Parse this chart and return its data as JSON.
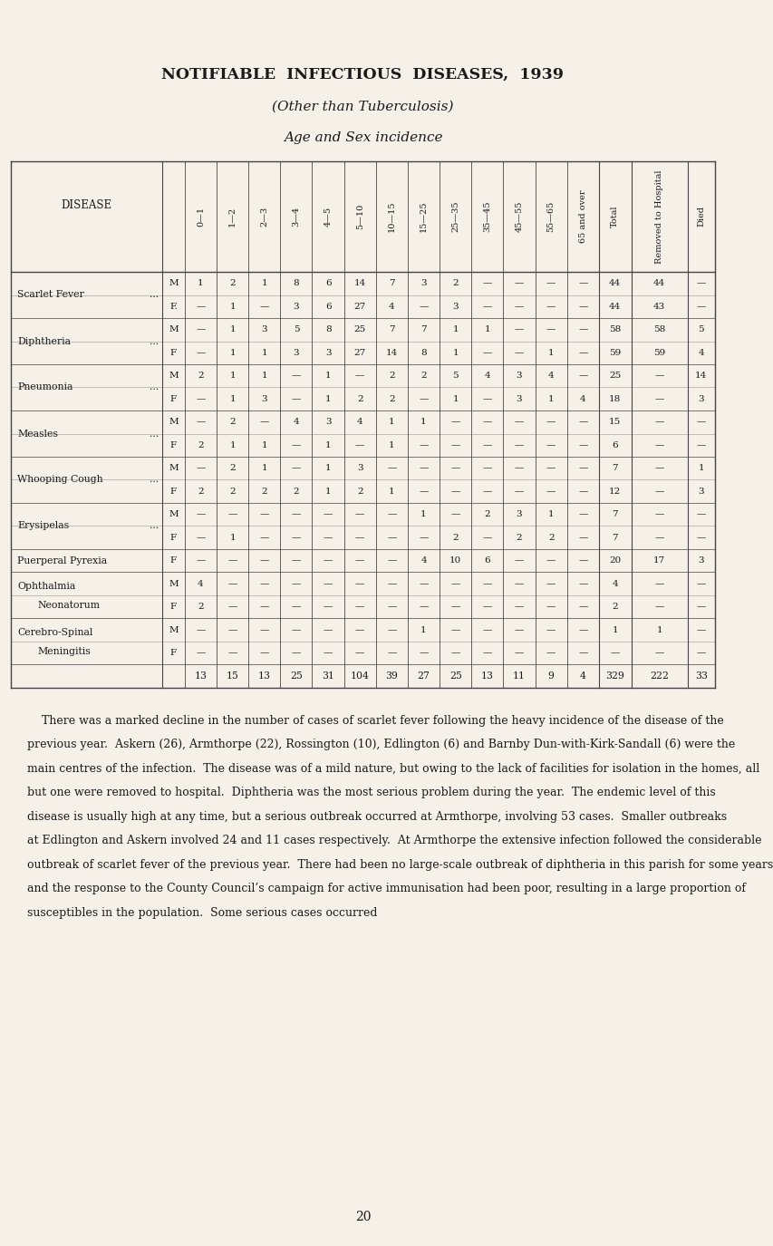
{
  "bg_color": "#f5f0e8",
  "title1": "NOTIFIABLE  INFECTIOUS  DISEASES,  1939",
  "title2": "(Other than Tuberculosis)",
  "title3": "Age and Sex incidence",
  "col_headers": [
    "0—1",
    "1—2",
    "2—3",
    "3—4",
    "4—5",
    "5—10",
    "10—15",
    "15—25",
    "25—35",
    "35—45",
    "45—55",
    "55—65",
    "65 and over",
    "Total",
    "Removed to Hospital",
    "Died"
  ],
  "diseases": [
    {
      "name": "Scarlet Fever",
      "dots": "...",
      "rows": [
        {
          "sex": "M",
          "vals": [
            "1",
            "2",
            "1",
            "8",
            "6",
            "14",
            "7",
            "3",
            "2",
            "—",
            "—",
            "—",
            "—",
            "44",
            "44",
            "—"
          ]
        },
        {
          "sex": "F.",
          "vals": [
            "—",
            "1",
            "—",
            "3",
            "6",
            "27",
            "4",
            "—",
            "3",
            "—",
            "—",
            "—",
            "—",
            "44",
            "43",
            "—"
          ]
        }
      ]
    },
    {
      "name": "Diphtheria",
      "dots": "...",
      "rows": [
        {
          "sex": "M",
          "vals": [
            "—",
            "1",
            "3",
            "5",
            "8",
            "25",
            "7",
            "7",
            "1",
            "1",
            "—",
            "—",
            "—",
            "58",
            "58",
            "5"
          ]
        },
        {
          "sex": "F",
          "vals": [
            "—",
            "1",
            "1",
            "3",
            "3",
            "27",
            "14",
            "8",
            "1",
            "—",
            "—",
            "1",
            "—",
            "59",
            "59",
            "4"
          ]
        }
      ]
    },
    {
      "name": "Pneumonia",
      "dots": "...",
      "rows": [
        {
          "sex": "M",
          "vals": [
            "2",
            "1",
            "1",
            "—",
            "1",
            "—",
            "2",
            "2",
            "5",
            "4",
            "3",
            "4",
            "—",
            "25",
            "—",
            "14"
          ]
        },
        {
          "sex": "F",
          "vals": [
            "—",
            "1",
            "3",
            "—",
            "1",
            "2",
            "2",
            "—",
            "1",
            "—",
            "3",
            "1",
            "4",
            "18",
            "—",
            "3"
          ]
        }
      ]
    },
    {
      "name": "Measles",
      "dots": "...",
      "rows": [
        {
          "sex": "M",
          "vals": [
            "—",
            "2",
            "—",
            "4",
            "3",
            "4",
            "1",
            "1",
            "—",
            "—",
            "—",
            "—",
            "—",
            "15",
            "—",
            "—"
          ]
        },
        {
          "sex": "F",
          "vals": [
            "2",
            "1",
            "1",
            "—",
            "1",
            "—",
            "1",
            "—",
            "—",
            "—",
            "—",
            "—",
            "—",
            "6",
            "—",
            "—"
          ]
        }
      ]
    },
    {
      "name": "Whooping Cough",
      "dots": "...",
      "rows": [
        {
          "sex": "M",
          "vals": [
            "—",
            "2",
            "1",
            "—",
            "1",
            "3",
            "—",
            "—",
            "—",
            "—",
            "—",
            "—",
            "—",
            "7",
            "—",
            "1"
          ]
        },
        {
          "sex": "F",
          "vals": [
            "2",
            "2",
            "2",
            "2",
            "1",
            "2",
            "1",
            "—",
            "—",
            "—",
            "—",
            "—",
            "—",
            "12",
            "—",
            "3"
          ]
        }
      ]
    },
    {
      "name": "Erysipelas",
      "dots": "...",
      "rows": [
        {
          "sex": "M",
          "vals": [
            "—",
            "—",
            "—",
            "—",
            "—",
            "—",
            "—",
            "1",
            "—",
            "2",
            "3",
            "1",
            "—",
            "7",
            "—",
            "—"
          ]
        },
        {
          "sex": "F",
          "vals": [
            "—",
            "1",
            "—",
            "—",
            "—",
            "—",
            "—",
            "—",
            "2",
            "—",
            "2",
            "2",
            "—",
            "7",
            "—",
            "—"
          ]
        }
      ]
    },
    {
      "name": "Puerperal Pyrexia",
      "dots": "",
      "single_sex": true,
      "rows": [
        {
          "sex": "F",
          "vals": [
            "—",
            "—",
            "—",
            "—",
            "—",
            "—",
            "—",
            "4",
            "10",
            "6",
            "—",
            "—",
            "—",
            "20",
            "17",
            "3"
          ]
        }
      ]
    },
    {
      "name": "Ophthalmia",
      "name2": "Neonatorum",
      "dots": "",
      "rows": [
        {
          "sex": "M",
          "vals": [
            "4",
            "—",
            "—",
            "—",
            "—",
            "—",
            "—",
            "—",
            "—",
            "—",
            "—",
            "—",
            "—",
            "4",
            "—",
            "—"
          ]
        },
        {
          "sex": "F",
          "vals": [
            "2",
            "—",
            "—",
            "—",
            "—",
            "—",
            "—",
            "—",
            "—",
            "—",
            "—",
            "—",
            "—",
            "2",
            "—",
            "—"
          ]
        }
      ]
    },
    {
      "name": "Cerebro-Spinal",
      "name2": "Meningitis",
      "dots": "",
      "rows": [
        {
          "sex": "M",
          "vals": [
            "—",
            "—",
            "—",
            "—",
            "—",
            "—",
            "—",
            "1",
            "—",
            "—",
            "—",
            "—",
            "—",
            "1",
            "1",
            "—"
          ]
        },
        {
          "sex": "F",
          "vals": [
            "—",
            "—",
            "—",
            "—",
            "—",
            "—",
            "—",
            "—",
            "—",
            "—",
            "—",
            "—",
            "—",
            "—",
            "—",
            "—"
          ]
        }
      ]
    }
  ],
  "totals": [
    "13",
    "15",
    "13",
    "25",
    "31",
    "104",
    "39",
    "27",
    "25",
    "13",
    "11",
    "9",
    "4",
    "329",
    "222",
    "33"
  ],
  "paragraph_lines": [
    "    There was a marked decline in the number of cases of scarlet fever following the heavy incidence of the disease of the",
    "previous year.  Askern (26), Armthorpe (22), Rossington (10), Edlington (6) and Barnby Dun-with-Kirk-Sandall (6) were the",
    "main centres of the infection.  The disease was of a mild nature, but owing to the lack of facilities for isolation in the homes, all",
    "but one were removed to hospital.  Diphtheria was the most serious problem during the year.  The endemic level of this",
    "disease is usually high at any time, but a serious outbreak occurred at Armthorpe, involving 53 cases.  Smaller outbreaks",
    "at Edlington and Askern involved 24 and 11 cases respectively.  At Armthorpe the extensive infection followed the considerable",
    "outbreak of scarlet fever of the previous year.  There had been no large-scale outbreak of diphtheria in this parish for some years",
    "and the response to the County Council’s campaign for active immunisation had been poor, resulting in a large proportion of",
    "susceptibles in the population.  Some serious cases occurred"
  ],
  "page_number": "20"
}
